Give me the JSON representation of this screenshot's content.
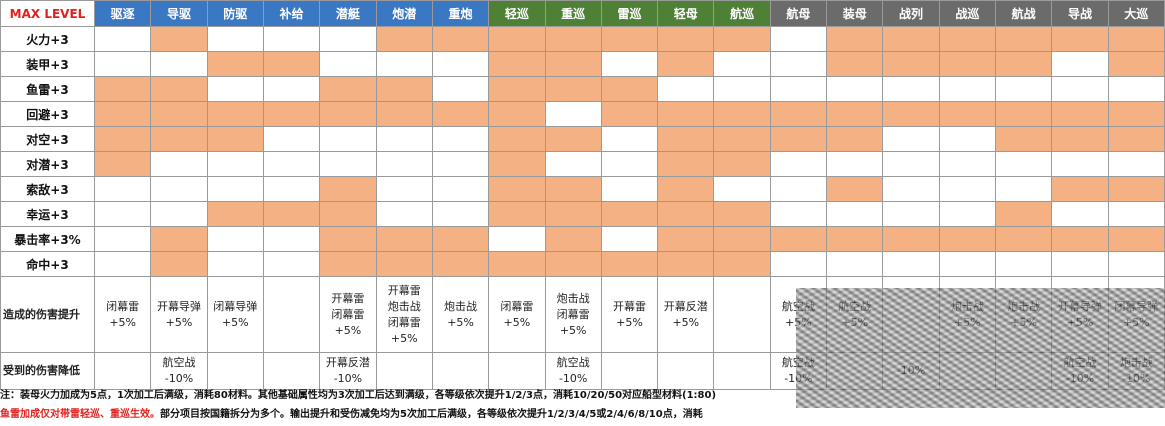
{
  "header": {
    "corner": "MAX LEVEL",
    "columns": [
      {
        "label": "驱逐",
        "color": "blue"
      },
      {
        "label": "导驱",
        "color": "blue"
      },
      {
        "label": "防驱",
        "color": "blue"
      },
      {
        "label": "补给",
        "color": "blue"
      },
      {
        "label": "潜艇",
        "color": "blue"
      },
      {
        "label": "炮潜",
        "color": "blue"
      },
      {
        "label": "重炮",
        "color": "blue"
      },
      {
        "label": "轻巡",
        "color": "green"
      },
      {
        "label": "重巡",
        "color": "green"
      },
      {
        "label": "雷巡",
        "color": "green"
      },
      {
        "label": "轻母",
        "color": "green"
      },
      {
        "label": "航巡",
        "color": "green"
      },
      {
        "label": "航母",
        "color": "gray"
      },
      {
        "label": "装母",
        "color": "gray"
      },
      {
        "label": "战列",
        "color": "gray"
      },
      {
        "label": "战巡",
        "color": "gray"
      },
      {
        "label": "航战",
        "color": "gray"
      },
      {
        "label": "导战",
        "color": "gray"
      },
      {
        "label": "大巡",
        "color": "gray"
      }
    ]
  },
  "attributes": [
    {
      "label": "火力+3",
      "cells": [
        0,
        1,
        0,
        0,
        0,
        1,
        1,
        1,
        1,
        1,
        1,
        1,
        0,
        1,
        1,
        1,
        1,
        1,
        1
      ]
    },
    {
      "label": "装甲+3",
      "cells": [
        0,
        0,
        1,
        1,
        0,
        0,
        0,
        1,
        1,
        0,
        1,
        0,
        0,
        1,
        1,
        1,
        1,
        0,
        1
      ]
    },
    {
      "label": "鱼雷+3",
      "cells": [
        1,
        1,
        0,
        0,
        1,
        1,
        0,
        1,
        1,
        1,
        0,
        0,
        0,
        0,
        0,
        0,
        0,
        0,
        0
      ]
    },
    {
      "label": "回避+3",
      "cells": [
        1,
        1,
        1,
        1,
        1,
        1,
        1,
        1,
        0,
        1,
        1,
        1,
        1,
        1,
        1,
        1,
        1,
        1,
        1
      ]
    },
    {
      "label": "对空+3",
      "cells": [
        1,
        1,
        1,
        0,
        0,
        0,
        0,
        1,
        1,
        0,
        1,
        1,
        1,
        1,
        0,
        0,
        1,
        1,
        1
      ]
    },
    {
      "label": "对潜+3",
      "cells": [
        1,
        0,
        0,
        0,
        0,
        0,
        0,
        1,
        0,
        0,
        1,
        1,
        0,
        0,
        0,
        0,
        0,
        0,
        0
      ]
    },
    {
      "label": "索敌+3",
      "cells": [
        0,
        0,
        0,
        0,
        1,
        0,
        0,
        1,
        1,
        0,
        1,
        0,
        0,
        1,
        0,
        0,
        0,
        1,
        1
      ]
    },
    {
      "label": "幸运+3",
      "cells": [
        0,
        0,
        1,
        1,
        1,
        0,
        0,
        1,
        1,
        1,
        1,
        1,
        0,
        0,
        0,
        0,
        1,
        0,
        0
      ]
    },
    {
      "label": "暴击率+3%",
      "cells": [
        0,
        1,
        0,
        0,
        1,
        1,
        1,
        0,
        1,
        0,
        1,
        1,
        1,
        1,
        1,
        1,
        1,
        1,
        1
      ]
    },
    {
      "label": "命中+3",
      "cells": [
        0,
        1,
        0,
        0,
        1,
        1,
        1,
        1,
        1,
        1,
        1,
        1,
        0,
        0,
        0,
        0,
        0,
        0,
        0
      ]
    }
  ],
  "damage_up": {
    "label": "造成的伤害提升",
    "cells": [
      [
        "闭幕雷",
        "+5%"
      ],
      [
        "开幕导弹",
        "+5%"
      ],
      [
        "闭幕导弹",
        "+5%"
      ],
      [],
      [
        "开幕雷",
        "闭幕雷",
        "+5%"
      ],
      [
        "开幕雷",
        "炮击战",
        "闭幕雷",
        "+5%"
      ],
      [
        "炮击战",
        "+5%"
      ],
      [
        "闭幕雷",
        "+5%"
      ],
      [
        "炮击战",
        "闭幕雷",
        "+5%"
      ],
      [
        "开幕雷",
        "+5%"
      ],
      [
        "开幕反潜",
        "+5%"
      ],
      [],
      [
        "航空战",
        "+5%"
      ],
      [
        "航空战",
        "+5%"
      ],
      [],
      [
        "炮击战",
        "+5%"
      ],
      [
        "炮击战",
        "+5%"
      ],
      [
        "开幕导弹",
        "+5%"
      ],
      [
        "闭幕导弹",
        "+5%"
      ]
    ]
  },
  "damage_down": {
    "label": "受到的伤害降低",
    "cells": [
      [],
      [
        "航空战",
        "-10%"
      ],
      [],
      [],
      [
        "开幕反潜",
        "-10%"
      ],
      [],
      [],
      [],
      [
        "航空战",
        "-10%"
      ],
      [],
      [],
      [],
      [
        "航空战",
        "-10%"
      ],
      [],
      [
        "-10%"
      ],
      [],
      [],
      [
        "航空战",
        "-10%"
      ],
      [
        "炮击战",
        "-10%"
      ]
    ]
  },
  "notes": {
    "line1": "注：装母火力加成为5点，1次加工后满级，消耗80材料。其他基础属性均为3次加工后达到满级，各等级依次提升1/2/3点，消耗10/20/50对应船型材料(1:80)",
    "line2_red": "鱼雷加成仅对带雷轻巡、重巡生效。",
    "line2_rest": "部分项目按国籍拆分为多个。输出提升和受伤减免均为5次加工后满级，各等级依次提升1/2/3/4/5或2/4/6/8/10点，消耗"
  },
  "colors": {
    "header_blue": "#3a78c4",
    "header_green": "#4e8136",
    "header_gray": "#6b6b6b",
    "highlight": "#f4b183",
    "corner_text": "#e0211d"
  }
}
